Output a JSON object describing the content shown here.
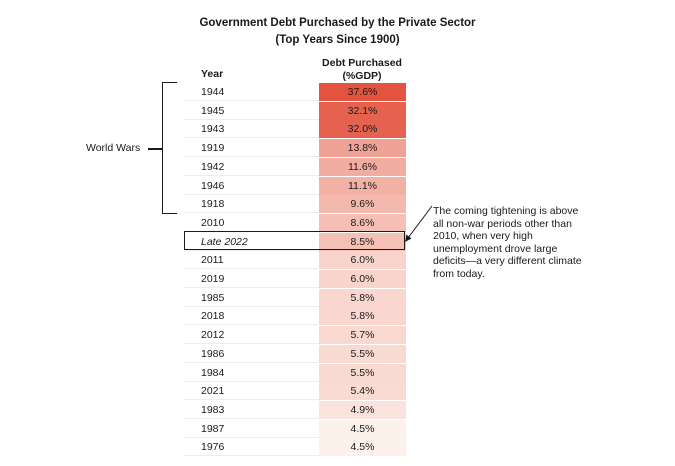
{
  "chart_data": {
    "type": "table",
    "title": "Government Debt Purchased by the Private Sector",
    "subtitle": "(Top Years Since 1900)",
    "columns": [
      "Year",
      "Debt Purchased (%GDP)"
    ],
    "column_year_label": "Year",
    "column_value_label_line1": "Debt Purchased",
    "column_value_label_line2": "(%GDP)",
    "rows": [
      {
        "year": "1944",
        "value": 37.6,
        "label": "37.6%"
      },
      {
        "year": "1945",
        "value": 32.1,
        "label": "32.1%"
      },
      {
        "year": "1943",
        "value": 32.0,
        "label": "32.0%"
      },
      {
        "year": "1919",
        "value": 13.8,
        "label": "13.8%"
      },
      {
        "year": "1942",
        "value": 11.6,
        "label": "11.6%"
      },
      {
        "year": "1946",
        "value": 11.1,
        "label": "11.1%"
      },
      {
        "year": "1918",
        "value": 9.6,
        "label": "9.6%"
      },
      {
        "year": "2010",
        "value": 8.6,
        "label": "8.6%"
      },
      {
        "year": "Late 2022",
        "value": 8.5,
        "label": "8.5%",
        "italic": true,
        "highlighted": true
      },
      {
        "year": "2011",
        "value": 6.0,
        "label": "6.0%"
      },
      {
        "year": "2019",
        "value": 6.0,
        "label": "6.0%"
      },
      {
        "year": "1985",
        "value": 5.8,
        "label": "5.8%"
      },
      {
        "year": "2018",
        "value": 5.8,
        "label": "5.8%"
      },
      {
        "year": "2012",
        "value": 5.7,
        "label": "5.7%"
      },
      {
        "year": "1986",
        "value": 5.5,
        "label": "5.5%"
      },
      {
        "year": "1984",
        "value": 5.5,
        "label": "5.5%"
      },
      {
        "year": "2021",
        "value": 5.4,
        "label": "5.4%"
      },
      {
        "year": "1983",
        "value": 4.9,
        "label": "4.9%"
      },
      {
        "year": "1987",
        "value": 4.5,
        "label": "4.5%"
      },
      {
        "year": "1976",
        "value": 4.5,
        "label": "4.5%"
      }
    ],
    "group_annotation": {
      "label": "World Wars",
      "from_year": "1944",
      "to_year": "1918"
    },
    "note": "The coming tightening is above all non-war periods other than 2010, when very high unemployment drove large deficits—a very different climate from today.",
    "heat_color_high": "#e4533f",
    "heat_color_low": "#fdf1ec"
  }
}
